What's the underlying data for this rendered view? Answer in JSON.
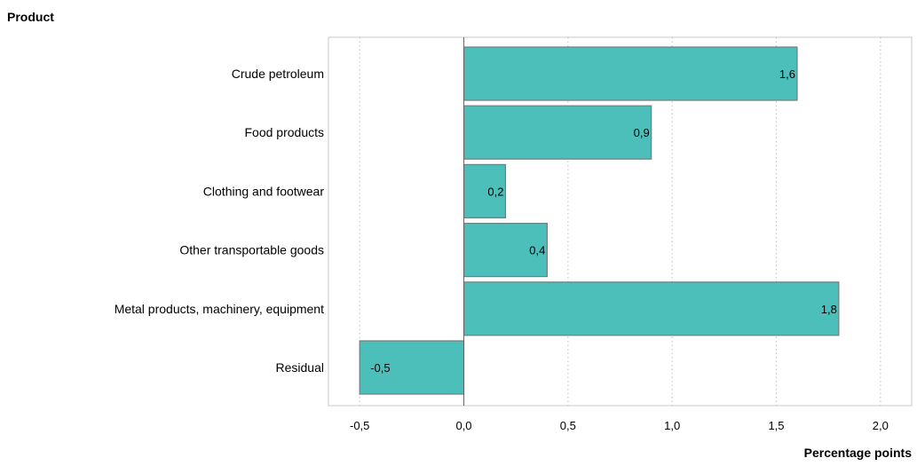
{
  "chart_data": {
    "type": "bar",
    "orientation": "horizontal",
    "y_axis_title": "Product",
    "x_axis_title": "Percentage points",
    "categories": [
      "Crude petroleum",
      "Food products",
      "Clothing and footwear",
      "Other transportable goods",
      "Metal products, machinery, equipment",
      "Residual"
    ],
    "values": [
      1.6,
      0.9,
      0.2,
      0.4,
      1.8,
      -0.5
    ],
    "value_labels": [
      "1,6",
      "0,9",
      "0,2",
      "0,4",
      "1,8",
      "-0,5"
    ],
    "xlim": [
      -0.65,
      2.15
    ],
    "x_ticks": [
      -0.5,
      0.0,
      0.5,
      1.0,
      1.5,
      2.0
    ],
    "x_tick_labels": [
      "-0,5",
      "0,0",
      "0,5",
      "1,0",
      "1,5",
      "2,0"
    ],
    "grid": "vertical-dotted",
    "bar_color": "#4dbfbb",
    "bar_border_color": "#7a7a7a",
    "frame_color": "#c8c8c8",
    "grid_color": "#c8c8c8",
    "zero_line_color": "#666666"
  }
}
